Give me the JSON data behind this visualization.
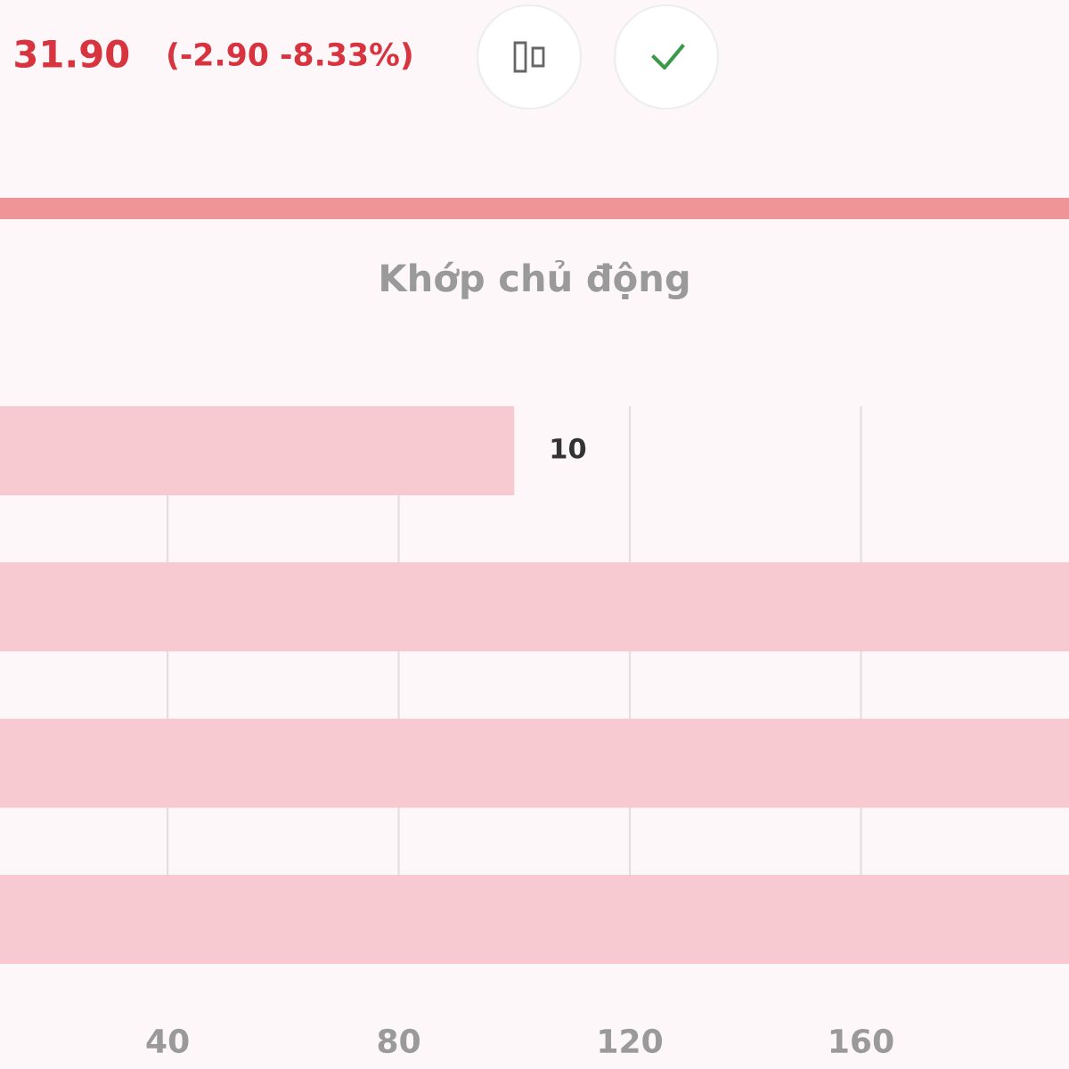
{
  "chart_data": {
    "type": "bar",
    "orientation": "horizontal",
    "title": "Khớp chủ động",
    "annotations": [
      "31.90",
      "(-2.90 -8.33%)",
      {
        "text": "10",
        "x": 100
      }
    ],
    "categories": [
      null,
      null,
      null,
      null
    ],
    "values": [
      100,
      196,
      196,
      196
    ],
    "color": "#f6cad0",
    "xlim": [
      11,
      196
    ],
    "xticks": [
      40,
      80,
      120,
      160
    ],
    "grid": "x",
    "tick_labels": "x"
  }
}
